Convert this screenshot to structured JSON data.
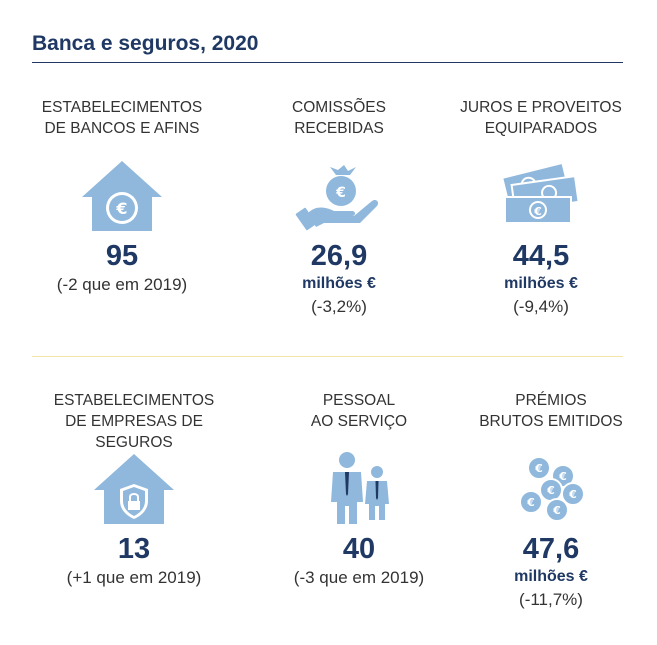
{
  "title": "Banca e seguros, 2020",
  "colors": {
    "primary": "#1f3864",
    "icon": "#8fb8dc",
    "text": "#333333",
    "rule": "#1f3864",
    "divider": "#f4e4a6"
  },
  "row1": [
    {
      "label": [
        "ESTABELECIMENTOS",
        "DE BANCOS E AFINS"
      ],
      "icon": "house-euro-icon",
      "value": "95",
      "unit": "",
      "note": "(-2 que em 2019)"
    },
    {
      "label": [
        "COMISSÕES",
        "RECEBIDAS"
      ],
      "icon": "hand-moneybag-icon",
      "value": "26,9",
      "unit": "milhões €",
      "note": "(-3,2%)"
    },
    {
      "label": [
        "JUROS E PROVEITOS",
        "EQUIPARADOS"
      ],
      "icon": "banknotes-icon",
      "value": "44,5",
      "unit": "milhões €",
      "note": "(-9,4%)"
    }
  ],
  "row2": [
    {
      "label": [
        "ESTABELECIMENTOS",
        "DE EMPRESAS DE SEGUROS"
      ],
      "icon": "house-shield-icon",
      "value": "13",
      "unit": "",
      "note": "(+1 que em 2019)"
    },
    {
      "label": [
        "PESSOAL",
        "AO SERVIÇO"
      ],
      "icon": "people-icon",
      "value": "40",
      "unit": "",
      "note": "(-3 que em 2019)"
    },
    {
      "label": [
        "PRÉMIOS",
        "BRUTOS EMITIDOS"
      ],
      "icon": "euro-coins-icon",
      "value": "47,6",
      "unit": "milhões €",
      "note": "(-11,7%)"
    }
  ]
}
